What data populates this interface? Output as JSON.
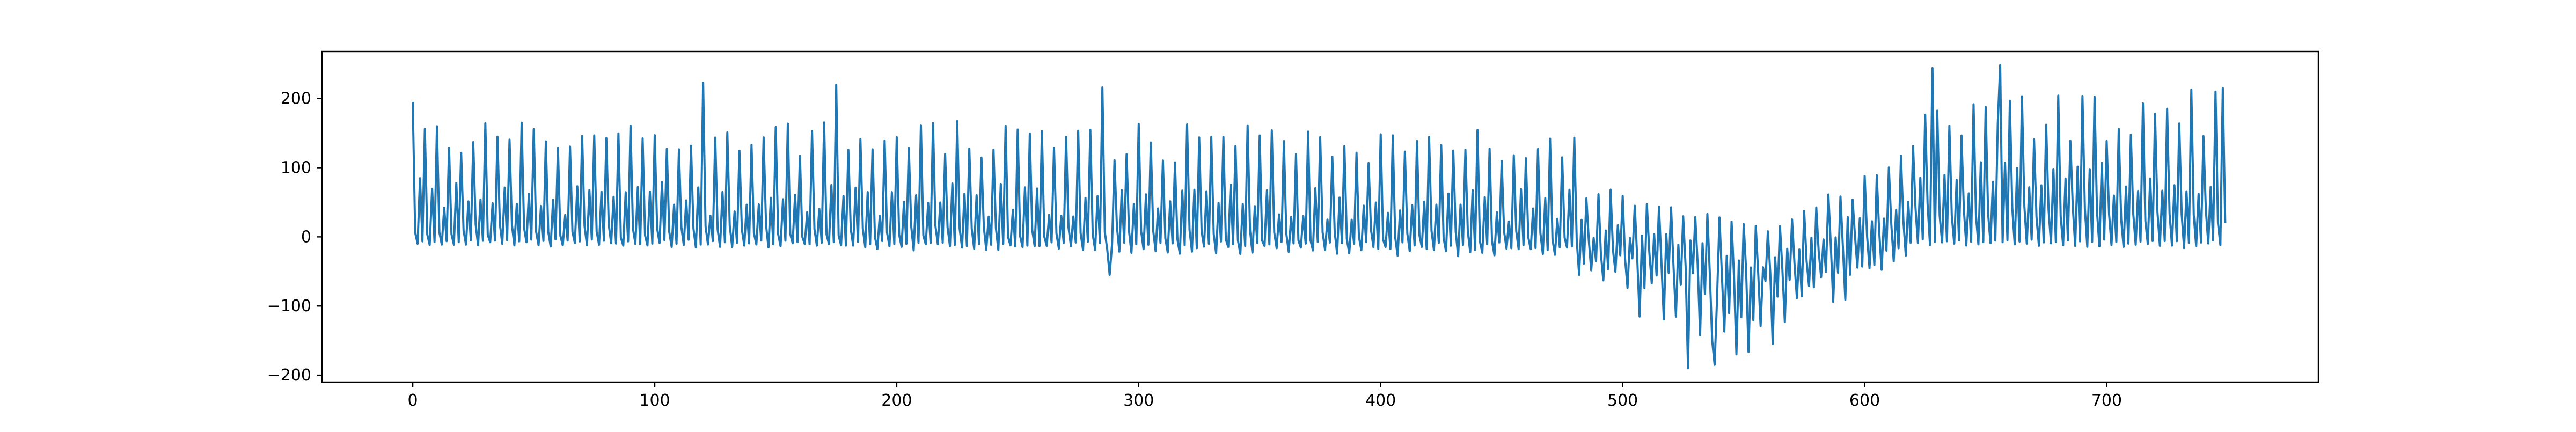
{
  "chart_data": {
    "type": "line",
    "title": "",
    "xlabel": "",
    "ylabel": "",
    "xlim": [
      -37.5,
      787.5
    ],
    "ylim": [
      -210,
      268
    ],
    "grid": false,
    "legend": "none",
    "x_ticks": [
      0,
      100,
      200,
      300,
      400,
      500,
      600,
      700
    ],
    "x_tick_labels": [
      "0",
      "100",
      "200",
      "300",
      "400",
      "500",
      "600",
      "700"
    ],
    "y_ticks": [
      -200,
      -100,
      0,
      100,
      200
    ],
    "y_tick_labels": [
      "−200",
      "−100",
      "0",
      "100",
      "200"
    ],
    "series": [
      {
        "color": "#1f77b4",
        "n_points": 750,
        "x_start": 0,
        "x_step": 1,
        "segments": [
          {
            "x_start": 0,
            "x_end": 300,
            "high_start": 160,
            "high_end": 150,
            "low_start": -10,
            "low_end": -20,
            "mid_start": 10,
            "mid_end": 5
          },
          {
            "x_start": 300,
            "x_end": 480,
            "high_start": 150,
            "high_end": 140,
            "low_start": -20,
            "low_end": -25,
            "mid_start": 5,
            "mid_end": 0
          },
          {
            "x_start": 480,
            "x_end": 560,
            "high_start": 80,
            "high_end": 10,
            "low_start": -60,
            "low_end": -170,
            "mid_start": -10,
            "mid_end": -60
          },
          {
            "x_start": 560,
            "x_end": 620,
            "high_start": 10,
            "high_end": 120,
            "low_start": -140,
            "low_end": -20,
            "mid_start": -50,
            "mid_end": 20
          },
          {
            "x_start": 620,
            "x_end": 750,
            "high_start": 180,
            "high_end": 200,
            "low_start": -10,
            "low_end": -15,
            "mid_start": 40,
            "mid_end": 30
          }
        ],
        "notable_points": [
          {
            "x": 0,
            "y": 195
          },
          {
            "x": 120,
            "y": 223
          },
          {
            "x": 175,
            "y": 220
          },
          {
            "x": 285,
            "y": 216
          },
          {
            "x": 288,
            "y": -55
          },
          {
            "x": 527,
            "y": -190
          },
          {
            "x": 538,
            "y": -185
          },
          {
            "x": 628,
            "y": 244
          },
          {
            "x": 656,
            "y": 248
          },
          {
            "x": 748,
            "y": 215
          },
          {
            "x": 749,
            "y": 20
          }
        ]
      }
    ]
  }
}
